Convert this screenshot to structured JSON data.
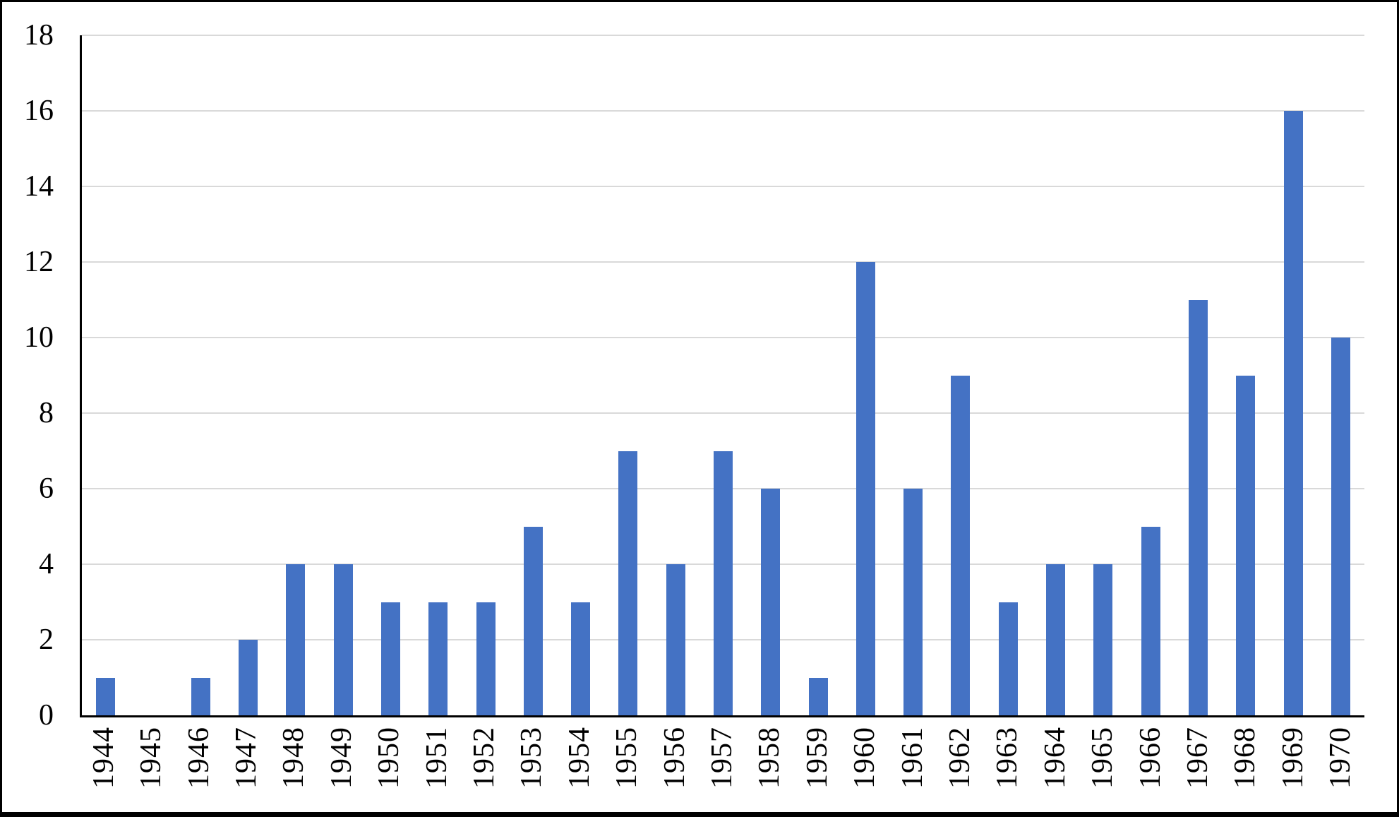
{
  "figure": {
    "background_color": "#FFFFFF",
    "frame_color": "#000000"
  },
  "chart_data": {
    "type": "bar",
    "title": "",
    "xlabel": "",
    "ylabel": "",
    "categories": [
      "1944",
      "1945",
      "1946",
      "1947",
      "1948",
      "1949",
      "1950",
      "1951",
      "1952",
      "1953",
      "1954",
      "1955",
      "1956",
      "1957",
      "1958",
      "1959",
      "1960",
      "1961",
      "1962",
      "1963",
      "1964",
      "1965",
      "1966",
      "1967",
      "1968",
      "1969",
      "1970"
    ],
    "values": [
      1,
      0,
      1,
      2,
      4,
      4,
      3,
      3,
      3,
      5,
      3,
      7,
      4,
      7,
      6,
      1,
      12,
      6,
      9,
      3,
      4,
      4,
      5,
      11,
      9,
      16,
      10
    ],
    "ylim": [
      0,
      18
    ],
    "yticks": [
      0,
      2,
      4,
      6,
      8,
      10,
      12,
      14,
      16,
      18
    ],
    "grid": true,
    "legend_position": "none",
    "bar_color": "#4472C4",
    "gridline_color": "#D9D9D9",
    "axis_line_color": "#000000",
    "tick_label_color": "#000000"
  }
}
